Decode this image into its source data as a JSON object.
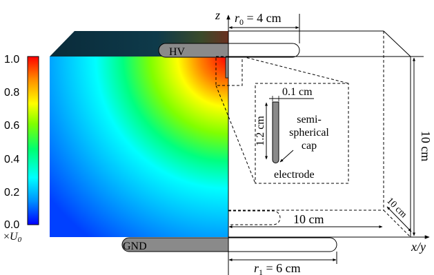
{
  "colorbar": {
    "ticks": [
      "1.0",
      "0.8",
      "0.6",
      "0.4",
      "0.2",
      "0.0"
    ],
    "unit_prefix": "×",
    "unit_var": "U",
    "unit_sub": "0",
    "colors": [
      "#0000ff",
      "#00a0ff",
      "#00ffff",
      "#00ff60",
      "#80ff00",
      "#ffff00",
      "#ff8000",
      "#ff0000"
    ]
  },
  "axes": {
    "z": "z",
    "xy": "x/y"
  },
  "electrodes": {
    "hv": "HV",
    "gnd": "GND"
  },
  "dimensions": {
    "r0": {
      "var": "r",
      "sub": "0",
      "text": " = 4 cm"
    },
    "r1": {
      "var": "r",
      "sub": "1",
      "text": " = 6 cm"
    },
    "height": "10 cm",
    "width": "10 cm",
    "depth": "10 cm"
  },
  "inset": {
    "width": "0.1 cm",
    "length": "1.2 cm",
    "cap": [
      "semi-",
      "spherical",
      "cap"
    ],
    "electrode": "electrode"
  }
}
